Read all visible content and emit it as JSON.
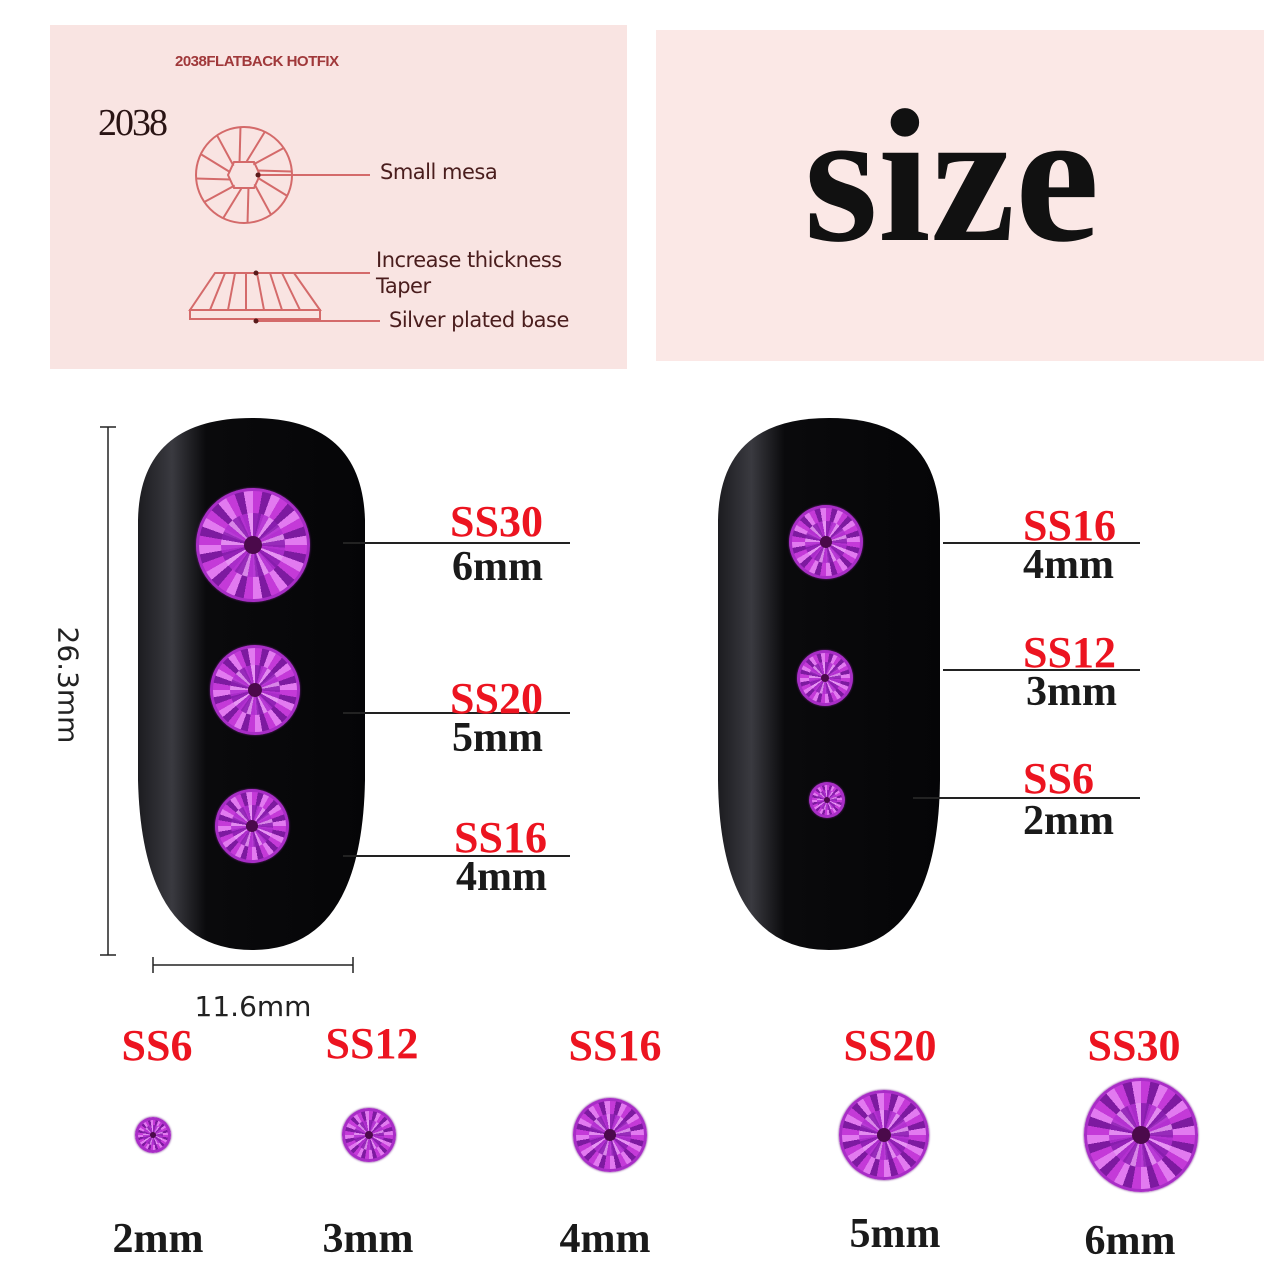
{
  "diagram": {
    "heading": "2038FLATBACK HOTFIX",
    "model": "2038",
    "labels": {
      "small_mesa": "Small mesa",
      "increase_thickness": "Increase thickness",
      "taper": "Taper",
      "silver_plated_base": "Silver plated base"
    },
    "line_color": "#d46a6a",
    "panel_color": "#f9e4e2"
  },
  "size_panel": {
    "title": "size"
  },
  "dimensions": {
    "height": "26.3mm",
    "width": "11.6mm"
  },
  "left_nail": [
    {
      "ss": "SS30",
      "mm": "6mm"
    },
    {
      "ss": "SS20",
      "mm": "5mm"
    },
    {
      "ss": "SS16",
      "mm": "4mm"
    }
  ],
  "right_nail": [
    {
      "ss": "SS16",
      "mm": "4mm"
    },
    {
      "ss": "SS12",
      "mm": "3mm"
    },
    {
      "ss": "SS6",
      "mm": "2mm"
    }
  ],
  "size_row": [
    {
      "ss": "SS6",
      "mm": "2mm"
    },
    {
      "ss": "SS12",
      "mm": "3mm"
    },
    {
      "ss": "SS16",
      "mm": "4mm"
    },
    {
      "ss": "SS20",
      "mm": "5mm"
    },
    {
      "ss": "SS30",
      "mm": "6mm"
    }
  ],
  "colors": {
    "ss_label": "#ec1420",
    "gem": "#b52ed6",
    "nail": "#0c0c0e"
  }
}
